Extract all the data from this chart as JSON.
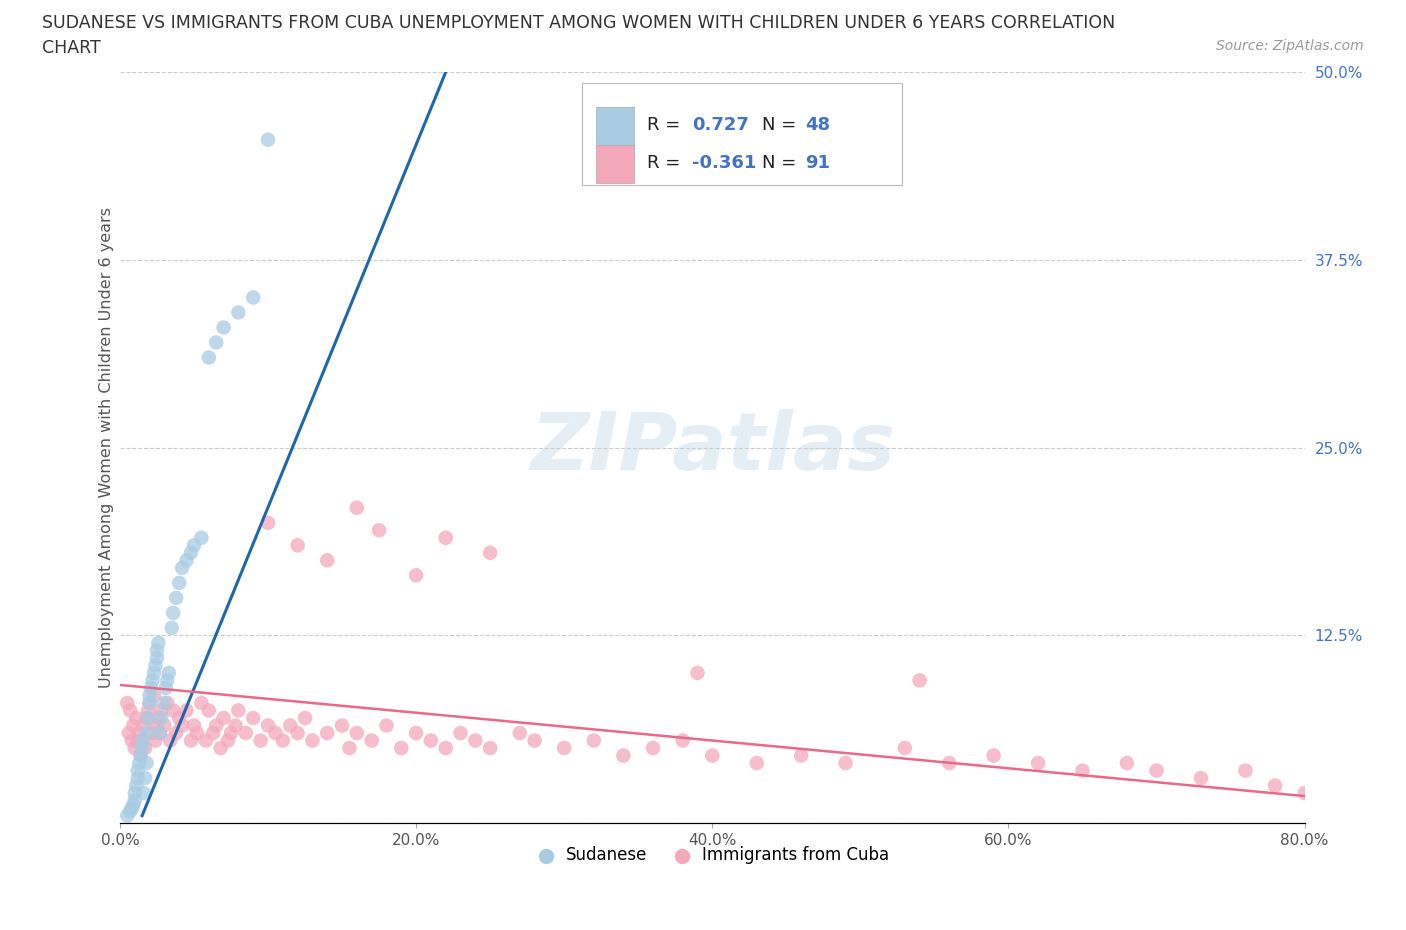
{
  "title_line1": "SUDANESE VS IMMIGRANTS FROM CUBA UNEMPLOYMENT AMONG WOMEN WITH CHILDREN UNDER 6 YEARS CORRELATION",
  "title_line2": "CHART",
  "source_text": "Source: ZipAtlas.com",
  "ylabel": "Unemployment Among Women with Children Under 6 years",
  "xlim": [
    0.0,
    0.8
  ],
  "ylim": [
    0.0,
    0.5
  ],
  "xticks": [
    0.0,
    0.2,
    0.4,
    0.6,
    0.8
  ],
  "xtick_labels": [
    "0.0%",
    "20.0%",
    "40.0%",
    "60.0%",
    "80.0%"
  ],
  "yticks": [
    0.0,
    0.125,
    0.25,
    0.375,
    0.5
  ],
  "ytick_labels_right": [
    "",
    "12.5%",
    "25.0%",
    "37.5%",
    "50.0%"
  ],
  "blue_R": 0.727,
  "blue_N": 48,
  "pink_R": -0.361,
  "pink_N": 91,
  "blue_color": "#a8cce4",
  "pink_color": "#f4a9bb",
  "blue_line_color": "#2166ac",
  "pink_line_color": "#e8698a",
  "watermark_text": "ZIPatlas",
  "legend_label_blue": "Sudanese",
  "legend_label_pink": "Immigrants from Cuba",
  "blue_line_x0": 0.015,
  "blue_line_y0": 0.005,
  "blue_line_x1": 0.22,
  "blue_line_y1": 0.5,
  "pink_line_x0": 0.0,
  "pink_line_y0": 0.092,
  "pink_line_x1": 0.8,
  "pink_line_y1": 0.018,
  "blue_scatter_x": [
    0.005,
    0.007,
    0.008,
    0.009,
    0.01,
    0.01,
    0.011,
    0.012,
    0.012,
    0.013,
    0.014,
    0.015,
    0.015,
    0.016,
    0.017,
    0.018,
    0.018,
    0.019,
    0.02,
    0.02,
    0.021,
    0.022,
    0.023,
    0.024,
    0.025,
    0.025,
    0.026,
    0.027,
    0.028,
    0.03,
    0.031,
    0.032,
    0.033,
    0.035,
    0.036,
    0.038,
    0.04,
    0.042,
    0.045,
    0.048,
    0.05,
    0.055,
    0.06,
    0.065,
    0.07,
    0.08,
    0.09,
    0.1
  ],
  "blue_scatter_y": [
    0.005,
    0.008,
    0.01,
    0.012,
    0.015,
    0.02,
    0.025,
    0.03,
    0.035,
    0.04,
    0.045,
    0.05,
    0.055,
    0.02,
    0.03,
    0.04,
    0.06,
    0.07,
    0.08,
    0.085,
    0.09,
    0.095,
    0.1,
    0.105,
    0.11,
    0.115,
    0.12,
    0.06,
    0.07,
    0.08,
    0.09,
    0.095,
    0.1,
    0.13,
    0.14,
    0.15,
    0.16,
    0.17,
    0.175,
    0.18,
    0.185,
    0.19,
    0.31,
    0.32,
    0.33,
    0.34,
    0.35,
    0.455
  ],
  "pink_scatter_x": [
    0.005,
    0.006,
    0.007,
    0.008,
    0.009,
    0.01,
    0.011,
    0.012,
    0.013,
    0.014,
    0.015,
    0.016,
    0.017,
    0.018,
    0.019,
    0.02,
    0.022,
    0.023,
    0.024,
    0.025,
    0.026,
    0.027,
    0.028,
    0.03,
    0.032,
    0.034,
    0.036,
    0.038,
    0.04,
    0.042,
    0.045,
    0.048,
    0.05,
    0.052,
    0.055,
    0.058,
    0.06,
    0.063,
    0.065,
    0.068,
    0.07,
    0.073,
    0.075,
    0.078,
    0.08,
    0.085,
    0.09,
    0.095,
    0.1,
    0.105,
    0.11,
    0.115,
    0.12,
    0.125,
    0.13,
    0.14,
    0.15,
    0.155,
    0.16,
    0.17,
    0.18,
    0.19,
    0.2,
    0.21,
    0.22,
    0.23,
    0.24,
    0.25,
    0.27,
    0.28,
    0.3,
    0.32,
    0.34,
    0.36,
    0.38,
    0.4,
    0.43,
    0.46,
    0.49,
    0.53,
    0.56,
    0.59,
    0.62,
    0.65,
    0.68,
    0.7,
    0.73,
    0.76,
    0.78,
    0.8
  ],
  "pink_scatter_y": [
    0.08,
    0.06,
    0.075,
    0.055,
    0.065,
    0.05,
    0.07,
    0.055,
    0.06,
    0.045,
    0.055,
    0.065,
    0.05,
    0.07,
    0.075,
    0.08,
    0.06,
    0.085,
    0.055,
    0.065,
    0.07,
    0.06,
    0.075,
    0.065,
    0.08,
    0.055,
    0.075,
    0.06,
    0.07,
    0.065,
    0.075,
    0.055,
    0.065,
    0.06,
    0.08,
    0.055,
    0.075,
    0.06,
    0.065,
    0.05,
    0.07,
    0.055,
    0.06,
    0.065,
    0.075,
    0.06,
    0.07,
    0.055,
    0.065,
    0.06,
    0.055,
    0.065,
    0.06,
    0.07,
    0.055,
    0.06,
    0.065,
    0.05,
    0.06,
    0.055,
    0.065,
    0.05,
    0.06,
    0.055,
    0.05,
    0.06,
    0.055,
    0.05,
    0.06,
    0.055,
    0.05,
    0.055,
    0.045,
    0.05,
    0.055,
    0.045,
    0.04,
    0.045,
    0.04,
    0.05,
    0.04,
    0.045,
    0.04,
    0.035,
    0.04,
    0.035,
    0.03,
    0.035,
    0.025,
    0.02
  ],
  "pink_outlier_x": [
    0.1,
    0.12,
    0.14,
    0.16,
    0.175,
    0.2,
    0.22,
    0.25,
    0.39,
    0.54
  ],
  "pink_outlier_y": [
    0.2,
    0.185,
    0.175,
    0.21,
    0.195,
    0.165,
    0.19,
    0.18,
    0.1,
    0.095
  ]
}
